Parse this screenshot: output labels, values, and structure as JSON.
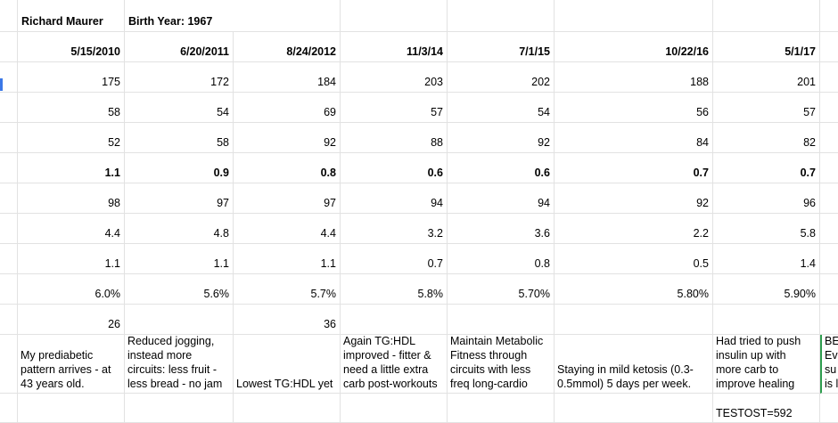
{
  "header": {
    "name": "Richard Maurer",
    "birth_year": "Birth Year: 1967"
  },
  "dates": [
    "5/15/2010",
    "6/20/2011",
    "8/24/2012",
    "11/3/14",
    "7/1/15",
    "10/22/16",
    "5/1/17"
  ],
  "rows": [
    {
      "cells": [
        "175",
        "172",
        "184",
        "203",
        "202",
        "188",
        "201"
      ]
    },
    {
      "cells": [
        "58",
        "54",
        "69",
        "57",
        "54",
        "56",
        "57"
      ]
    },
    {
      "cells": [
        "52",
        "58",
        "92",
        "88",
        "92",
        "84",
        "82"
      ]
    },
    {
      "bold": true,
      "cells": [
        "1.1",
        "0.9",
        "0.8",
        "0.6",
        "0.6",
        "0.7",
        "0.7"
      ]
    },
    {
      "cells": [
        "98",
        "97",
        "97",
        "94",
        "94",
        "92",
        "96"
      ]
    },
    {
      "cells": [
        "4.4",
        "4.8",
        "4.4",
        "3.2",
        "3.6",
        "2.2",
        "5.8"
      ]
    },
    {
      "cells": [
        "1.1",
        "1.1",
        "1.1",
        "0.7",
        "0.8",
        "0.5",
        "1.4"
      ]
    },
    {
      "cells": [
        "6.0%",
        "5.6%",
        "5.7%",
        "5.8%",
        "5.70%",
        "5.80%",
        "5.90%"
      ]
    }
  ],
  "sparse_row": [
    {
      "col": 0,
      "text": "26"
    },
    {
      "col": 2,
      "text": "36"
    }
  ],
  "notes": [
    [
      "My prediabetic",
      "pattern arrives - at",
      "43 years old."
    ],
    [
      "Reduced jogging,",
      "instead more",
      "circuits: less fruit -",
      "less bread - no jam"
    ],
    [
      "Lowest TG:HDL yet"
    ],
    [
      "Again TG:HDL",
      "improved - fitter &",
      "need a little extra",
      "carb post-workouts"
    ],
    [
      "Maintain Metabolic",
      "Fitness through",
      "circuits with less",
      "freq long-cardio"
    ],
    [
      "Staying in mild ketosis (0.3-",
      "0.5mmol) 5 days per week."
    ],
    [
      "Had tried to push",
      "insulin up with",
      "more carb to",
      "improve healing"
    ],
    [
      "BE",
      "Ev",
      "su",
      "is l"
    ]
  ],
  "footer": {
    "col": 6,
    "text": "TESTOST=592"
  }
}
